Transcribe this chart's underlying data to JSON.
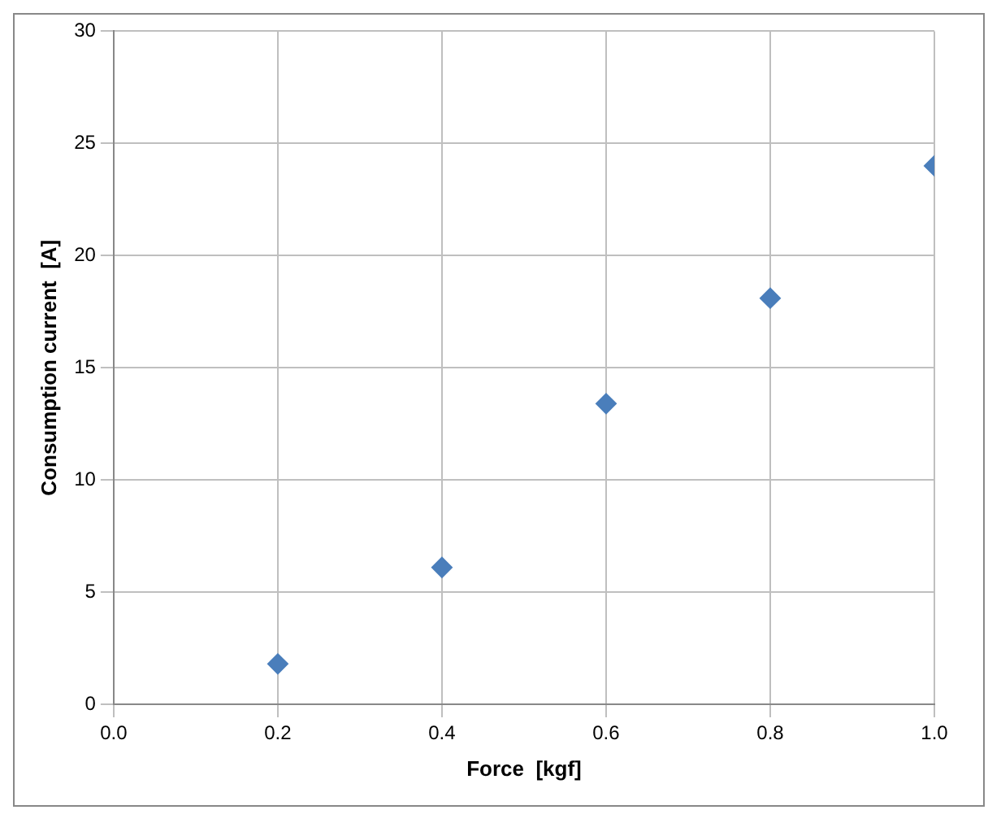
{
  "chart_data": {
    "type": "scatter",
    "xlabel": "Force  [kgf]",
    "ylabel": "Consumption current  [A]",
    "x": [
      0.2,
      0.4,
      0.6,
      0.8,
      1.0
    ],
    "series": [
      {
        "color": "#4a7ebb",
        "values": [
          1.8,
          6.1,
          13.4,
          18.1,
          24.0
        ]
      }
    ],
    "xlim": [
      0,
      1
    ],
    "xticks": [
      {
        "value": 0,
        "label": "0.0"
      },
      {
        "value": 0.2,
        "label": "0.2"
      },
      {
        "value": 0.4,
        "label": "0.4"
      },
      {
        "value": 0.6,
        "label": "0.6"
      },
      {
        "value": 0.8,
        "label": "0.8"
      },
      {
        "value": 1,
        "label": "1.0"
      }
    ],
    "ylim": [
      0,
      30
    ],
    "yticks": [
      0,
      5,
      10,
      15,
      20,
      25,
      30
    ],
    "grid": true,
    "marker": "diamond",
    "legend": false
  }
}
